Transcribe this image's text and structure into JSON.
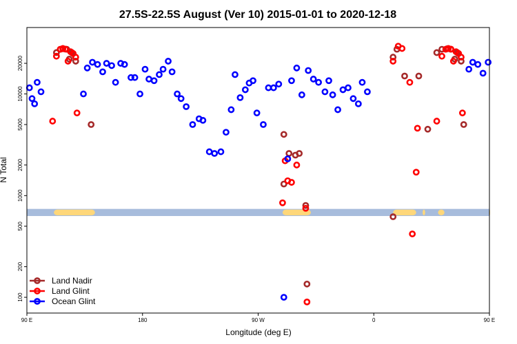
{
  "chart_data": {
    "type": "scatter",
    "title": "27.5S-22.5S August (Ver 10)   2015-01-01 to 2020-12-18",
    "xlabel": "Longitude (deg E)",
    "ylabel": "N Total",
    "x_range": [
      90,
      450
    ],
    "y_scale": "log",
    "y_range": [
      70,
      45000
    ],
    "x_ticks": [
      {
        "value": 90,
        "label": "90 E"
      },
      {
        "value": 180,
        "label": "180"
      },
      {
        "value": 270,
        "label": "90 W"
      },
      {
        "value": 360,
        "label": "0"
      },
      {
        "value": 450,
        "label": "90 E"
      }
    ],
    "y_ticks": [
      100,
      200,
      500,
      1000,
      2000,
      5000,
      10000,
      20000
    ],
    "legend_position": "bottom-left",
    "band": {
      "y_low": 630,
      "y_high": 740,
      "color": "#a7bcdc",
      "land_color": "#fed77a",
      "land_segments": [
        [
          111,
          143
        ],
        [
          289,
          311
        ],
        [
          375,
          393
        ],
        [
          398,
          400
        ],
        [
          410,
          415
        ],
        [
          450,
          450
        ]
      ]
    },
    "series": [
      {
        "name": "Land Nadir",
        "color": "#a52a2a",
        "points": [
          [
            113,
            25500
          ],
          [
            116,
            27500
          ],
          [
            118,
            27800
          ],
          [
            121,
            27500
          ],
          [
            123,
            22000
          ],
          [
            125,
            25500
          ],
          [
            128,
            21000
          ],
          [
            140,
            5000
          ],
          [
            290,
            4000
          ],
          [
            294,
            2600
          ],
          [
            299,
            2500
          ],
          [
            302,
            2600
          ],
          [
            395,
            15000
          ],
          [
            290,
            1300
          ],
          [
            307,
            800
          ],
          [
            375,
            23000
          ],
          [
            378,
            27500
          ],
          [
            384,
            15000
          ],
          [
            402,
            4500
          ],
          [
            308,
            135
          ],
          [
            375,
            620
          ],
          [
            409,
            25500
          ],
          [
            413,
            27500
          ],
          [
            417,
            27800
          ],
          [
            420,
            27500
          ],
          [
            423,
            22000
          ],
          [
            425,
            25500
          ],
          [
            428,
            21000
          ],
          [
            430,
            5000
          ]
        ]
      },
      {
        "name": "Land Glint",
        "color": "#ff0000",
        "points": [
          [
            110,
            5400
          ],
          [
            113,
            23500
          ],
          [
            116,
            27500
          ],
          [
            118,
            28000
          ],
          [
            120,
            27600
          ],
          [
            122,
            21000
          ],
          [
            124,
            26000
          ],
          [
            126,
            25000
          ],
          [
            128,
            23000
          ],
          [
            129,
            6500
          ],
          [
            289,
            850
          ],
          [
            291,
            2200
          ],
          [
            293,
            1400
          ],
          [
            296,
            1350
          ],
          [
            300,
            2000
          ],
          [
            307,
            750
          ],
          [
            308,
            90
          ],
          [
            375,
            21000
          ],
          [
            379,
            29500
          ],
          [
            382,
            28000
          ],
          [
            388,
            13000
          ],
          [
            390,
            420
          ],
          [
            393,
            1700
          ],
          [
            394,
            4600
          ],
          [
            409,
            5400
          ],
          [
            413,
            23500
          ],
          [
            416,
            27500
          ],
          [
            418,
            28000
          ],
          [
            420,
            27600
          ],
          [
            422,
            21000
          ],
          [
            424,
            26000
          ],
          [
            426,
            25000
          ],
          [
            428,
            23000
          ],
          [
            429,
            6500
          ]
        ]
      },
      {
        "name": "Ocean Glint",
        "color": "#0000ff",
        "points": [
          [
            92,
            11500
          ],
          [
            94,
            9000
          ],
          [
            96,
            8000
          ],
          [
            98,
            13000
          ],
          [
            101,
            10500
          ],
          [
            134,
            10000
          ],
          [
            137,
            18000
          ],
          [
            141,
            20500
          ],
          [
            145,
            19500
          ],
          [
            149,
            16500
          ],
          [
            152,
            20000
          ],
          [
            156,
            19000
          ],
          [
            159,
            13000
          ],
          [
            163,
            20000
          ],
          [
            166,
            19500
          ],
          [
            171,
            14500
          ],
          [
            174,
            14500
          ],
          [
            178,
            10000
          ],
          [
            182,
            17500
          ],
          [
            185,
            14000
          ],
          [
            189,
            13500
          ],
          [
            193,
            15500
          ],
          [
            196,
            17500
          ],
          [
            200,
            21000
          ],
          [
            203,
            16500
          ],
          [
            207,
            10000
          ],
          [
            210,
            9000
          ],
          [
            214,
            7500
          ],
          [
            219,
            5000
          ],
          [
            224,
            5700
          ],
          [
            227,
            5500
          ],
          [
            232,
            2700
          ],
          [
            236,
            2600
          ],
          [
            241,
            2700
          ],
          [
            245,
            4200
          ],
          [
            249,
            7000
          ],
          [
            252,
            15500
          ],
          [
            256,
            9200
          ],
          [
            260,
            11000
          ],
          [
            263,
            12800
          ],
          [
            266,
            13500
          ],
          [
            269,
            6500
          ],
          [
            274,
            5000
          ],
          [
            278,
            11500
          ],
          [
            282,
            11500
          ],
          [
            286,
            12500
          ],
          [
            290,
            100
          ],
          [
            293,
            2300
          ],
          [
            296,
            13500
          ],
          [
            300,
            18000
          ],
          [
            304,
            9800
          ],
          [
            309,
            17000
          ],
          [
            313,
            14000
          ],
          [
            317,
            13000
          ],
          [
            322,
            10500
          ],
          [
            325,
            13500
          ],
          [
            328,
            9800
          ],
          [
            332,
            7000
          ],
          [
            336,
            11000
          ],
          [
            340,
            11500
          ],
          [
            344,
            9000
          ],
          [
            348,
            8000
          ],
          [
            351,
            13000
          ],
          [
            355,
            10500
          ],
          [
            434,
            17500
          ],
          [
            437,
            20500
          ],
          [
            441,
            19500
          ],
          [
            445,
            16000
          ],
          [
            449,
            20500
          ]
        ]
      }
    ]
  }
}
